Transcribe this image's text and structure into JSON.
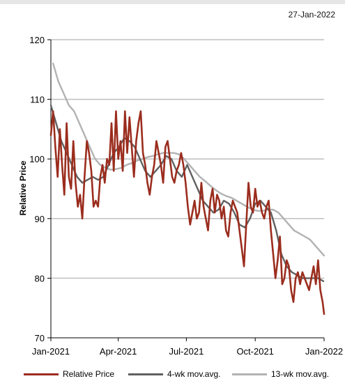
{
  "header": {
    "date": "27-Jan-2022"
  },
  "colors": {
    "relative": "#9b2d1e",
    "ma4": "#606060",
    "ma13": "#b2b2b2",
    "grid": "#bfbfbf"
  },
  "chart_data": {
    "type": "line",
    "title": "",
    "xlabel": "",
    "ylabel": "Relative Price",
    "ylim": [
      70,
      120
    ],
    "yticks": [
      70,
      80,
      90,
      100,
      110,
      120
    ],
    "xlim": [
      "2021-01-01",
      "2022-01-01"
    ],
    "xticks": [
      {
        "date": "2021-01-01",
        "label": "Jan-2021"
      },
      {
        "date": "2021-04-01",
        "label": "Apr-2021"
      },
      {
        "date": "2021-07-01",
        "label": "Jul-2021"
      },
      {
        "date": "2021-10-01",
        "label": "Oct-2021"
      },
      {
        "date": "2022-01-01",
        "label": "Jan-2022"
      }
    ],
    "grid": "horizontal",
    "legend_position": "bottom",
    "series": [
      {
        "name": "Relative Price",
        "x": [
          "2021-01-01",
          "2021-01-04",
          "2021-01-07",
          "2021-01-10",
          "2021-01-13",
          "2021-01-16",
          "2021-01-19",
          "2021-01-22",
          "2021-01-25",
          "2021-01-28",
          "2021-01-31",
          "2021-02-03",
          "2021-02-06",
          "2021-02-09",
          "2021-02-12",
          "2021-02-15",
          "2021-02-18",
          "2021-02-21",
          "2021-02-24",
          "2021-02-27",
          "2021-03-02",
          "2021-03-05",
          "2021-03-08",
          "2021-03-11",
          "2021-03-14",
          "2021-03-17",
          "2021-03-20",
          "2021-03-23",
          "2021-03-26",
          "2021-03-29",
          "2021-04-01",
          "2021-04-04",
          "2021-04-07",
          "2021-04-10",
          "2021-04-13",
          "2021-04-16",
          "2021-04-19",
          "2021-04-22",
          "2021-04-25",
          "2021-04-28",
          "2021-05-01",
          "2021-05-04",
          "2021-05-07",
          "2021-05-10",
          "2021-05-13",
          "2021-05-16",
          "2021-05-19",
          "2021-05-22",
          "2021-05-25",
          "2021-05-28",
          "2021-05-31",
          "2021-06-03",
          "2021-06-06",
          "2021-06-09",
          "2021-06-12",
          "2021-06-15",
          "2021-06-18",
          "2021-06-21",
          "2021-06-24",
          "2021-06-27",
          "2021-06-30",
          "2021-07-03",
          "2021-07-06",
          "2021-07-09",
          "2021-07-12",
          "2021-07-15",
          "2021-07-18",
          "2021-07-21",
          "2021-07-24",
          "2021-07-27",
          "2021-07-30",
          "2021-08-02",
          "2021-08-05",
          "2021-08-08",
          "2021-08-11",
          "2021-08-14",
          "2021-08-17",
          "2021-08-20",
          "2021-08-23",
          "2021-08-26",
          "2021-08-29",
          "2021-09-01",
          "2021-09-04",
          "2021-09-07",
          "2021-09-10",
          "2021-09-13",
          "2021-09-16",
          "2021-09-19",
          "2021-09-22",
          "2021-09-25",
          "2021-09-28",
          "2021-10-01",
          "2021-10-04",
          "2021-10-07",
          "2021-10-10",
          "2021-10-13",
          "2021-10-16",
          "2021-10-19",
          "2021-10-22",
          "2021-10-25",
          "2021-10-28",
          "2021-10-31",
          "2021-11-03",
          "2021-11-06",
          "2021-11-09",
          "2021-11-12",
          "2021-11-15",
          "2021-11-18",
          "2021-11-21",
          "2021-11-24",
          "2021-11-27",
          "2021-11-30",
          "2021-12-03",
          "2021-12-06",
          "2021-12-09",
          "2021-12-12",
          "2021-12-15",
          "2021-12-18",
          "2021-12-21",
          "2021-12-24",
          "2021-12-27",
          "2021-12-30",
          "2022-01-01"
        ],
        "values": [
          104,
          108,
          102,
          97,
          105,
          99,
          94,
          106,
          97,
          95,
          103,
          96,
          92,
          94,
          90,
          97,
          103,
          101,
          98,
          92,
          93,
          92,
          97,
          99,
          96,
          100,
          99,
          106,
          98,
          108,
          100,
          103,
          98,
          108,
          101,
          107,
          102,
          97,
          103,
          106,
          108,
          101,
          99,
          96,
          94,
          97,
          99,
          103,
          101,
          99,
          96,
          102,
          103,
          100,
          97,
          96,
          98,
          99,
          101,
          99,
          96,
          92,
          89,
          91,
          93,
          90,
          91,
          96,
          92,
          90,
          88,
          93,
          95,
          91,
          94,
          93,
          90,
          92,
          88,
          87,
          91,
          93,
          92,
          91,
          88,
          85,
          82,
          89,
          96,
          92,
          91,
          95,
          92,
          93,
          91,
          90,
          92,
          93,
          88,
          84,
          80,
          83,
          87,
          79,
          80,
          83,
          82,
          78,
          76,
          80,
          81,
          79,
          81,
          80,
          79,
          78,
          80,
          82,
          79,
          83,
          78,
          76,
          74
        ],
        "style": "solid"
      },
      {
        "name": "4-wk mov.avg.",
        "x": [
          "2021-01-01",
          "2021-01-08",
          "2021-01-15",
          "2021-01-22",
          "2021-01-29",
          "2021-02-05",
          "2021-02-12",
          "2021-02-19",
          "2021-02-26",
          "2021-03-05",
          "2021-03-12",
          "2021-03-19",
          "2021-03-26",
          "2021-04-02",
          "2021-04-09",
          "2021-04-16",
          "2021-04-23",
          "2021-04-30",
          "2021-05-07",
          "2021-05-14",
          "2021-05-21",
          "2021-05-28",
          "2021-06-04",
          "2021-06-11",
          "2021-06-18",
          "2021-06-25",
          "2021-07-02",
          "2021-07-09",
          "2021-07-16",
          "2021-07-23",
          "2021-07-30",
          "2021-08-06",
          "2021-08-13",
          "2021-08-20",
          "2021-08-27",
          "2021-09-03",
          "2021-09-10",
          "2021-09-17",
          "2021-09-24",
          "2021-10-01",
          "2021-10-08",
          "2021-10-15",
          "2021-10-22",
          "2021-10-29",
          "2021-11-05",
          "2021-11-12",
          "2021-11-19",
          "2021-11-26",
          "2021-12-03",
          "2021-12-10",
          "2021-12-17",
          "2021-12-24",
          "2021-12-31"
        ],
        "values": [
          109,
          106,
          103,
          101,
          99,
          97,
          96,
          96.5,
          97,
          96.5,
          97,
          99,
          101,
          102,
          103.5,
          103,
          102,
          100,
          98,
          97,
          98,
          99,
          100.5,
          100,
          98,
          97,
          99,
          97,
          95,
          93,
          92,
          91,
          91.5,
          93,
          92.5,
          91,
          89,
          88.5,
          90,
          92.5,
          93,
          92,
          91,
          88,
          84,
          82,
          81,
          80.5,
          80,
          80,
          80,
          80,
          79.5
        ],
        "style": "solid"
      },
      {
        "name": "13-wk mov.avg.",
        "x": [
          "2021-01-04",
          "2021-01-11",
          "2021-01-18",
          "2021-01-25",
          "2021-02-01",
          "2021-02-08",
          "2021-02-15",
          "2021-02-22",
          "2021-03-01",
          "2021-03-08",
          "2021-03-15",
          "2021-03-22",
          "2021-03-29",
          "2021-04-05",
          "2021-04-12",
          "2021-04-19",
          "2021-04-26",
          "2021-05-03",
          "2021-05-10",
          "2021-05-17",
          "2021-05-24",
          "2021-05-31",
          "2021-06-07",
          "2021-06-14",
          "2021-06-21",
          "2021-06-28",
          "2021-07-05",
          "2021-07-12",
          "2021-07-19",
          "2021-07-26",
          "2021-08-02",
          "2021-08-09",
          "2021-08-16",
          "2021-08-23",
          "2021-08-30",
          "2021-09-06",
          "2021-09-13",
          "2021-09-20",
          "2021-09-27",
          "2021-10-04",
          "2021-10-11",
          "2021-10-18",
          "2021-10-25",
          "2021-11-01",
          "2021-11-08",
          "2021-11-15",
          "2021-11-22",
          "2021-11-29",
          "2021-12-06",
          "2021-12-13",
          "2021-12-20",
          "2021-12-27",
          "2022-01-01"
        ],
        "values": [
          116,
          113,
          111,
          109,
          108,
          106,
          104,
          102,
          100,
          99,
          98.5,
          98.2,
          98.3,
          98.5,
          99,
          99.3,
          99.7,
          100,
          100.3,
          100.5,
          100.8,
          101,
          101,
          101,
          100.8,
          100,
          99,
          98,
          97,
          96.3,
          95.5,
          94.8,
          94.2,
          93.8,
          93.5,
          93,
          92.5,
          92,
          91.5,
          91.3,
          91.3,
          91.5,
          91.5,
          91,
          90,
          89,
          88,
          87.5,
          87,
          86.5,
          85.5,
          84.5,
          83.8
        ],
        "style": "solid"
      }
    ]
  }
}
